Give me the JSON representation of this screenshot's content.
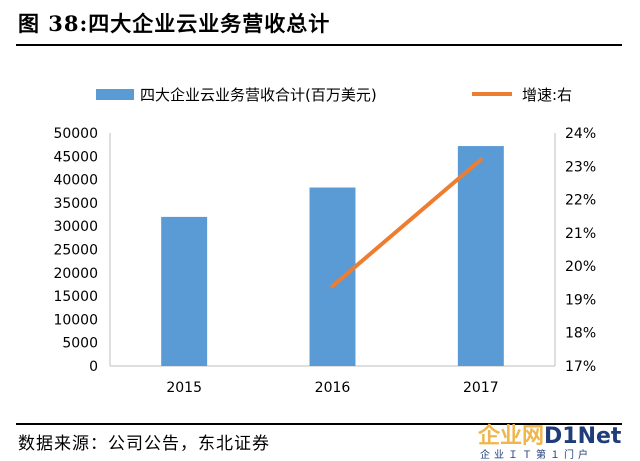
{
  "title": "图 38:四大企业云业务营收总计",
  "source": "数据来源：公司公告，东北证券",
  "watermark": {
    "brand_a": "企业网",
    "brand_b": "D1Net",
    "sub": "企业ＩＴ第１门户"
  },
  "chart_data": {
    "type": "bar",
    "title": "",
    "categories": [
      "2015",
      "2016",
      "2017"
    ],
    "series": [
      {
        "name": "四大企业云业务营收合计(百万美元)",
        "type": "bar",
        "axis": "left",
        "color": "#5b9bd5",
        "values": [
          32000,
          38300,
          47200
        ]
      },
      {
        "name": "增速:右",
        "type": "line",
        "axis": "right",
        "color": "#ed7d31",
        "values": [
          null,
          19.4,
          23.2
        ]
      }
    ],
    "y_left": {
      "min": 0,
      "max": 50000,
      "step": 5000,
      "ticks": [
        "0",
        "5000",
        "10000",
        "15000",
        "20000",
        "25000",
        "30000",
        "35000",
        "40000",
        "45000",
        "50000"
      ]
    },
    "y_right": {
      "min": 17,
      "max": 24,
      "step": 1,
      "ticks": [
        "17%",
        "18%",
        "19%",
        "20%",
        "21%",
        "22%",
        "23%",
        "24%"
      ]
    },
    "xlabel": "",
    "ylabel": "",
    "grid": false,
    "legend_position": "top"
  }
}
